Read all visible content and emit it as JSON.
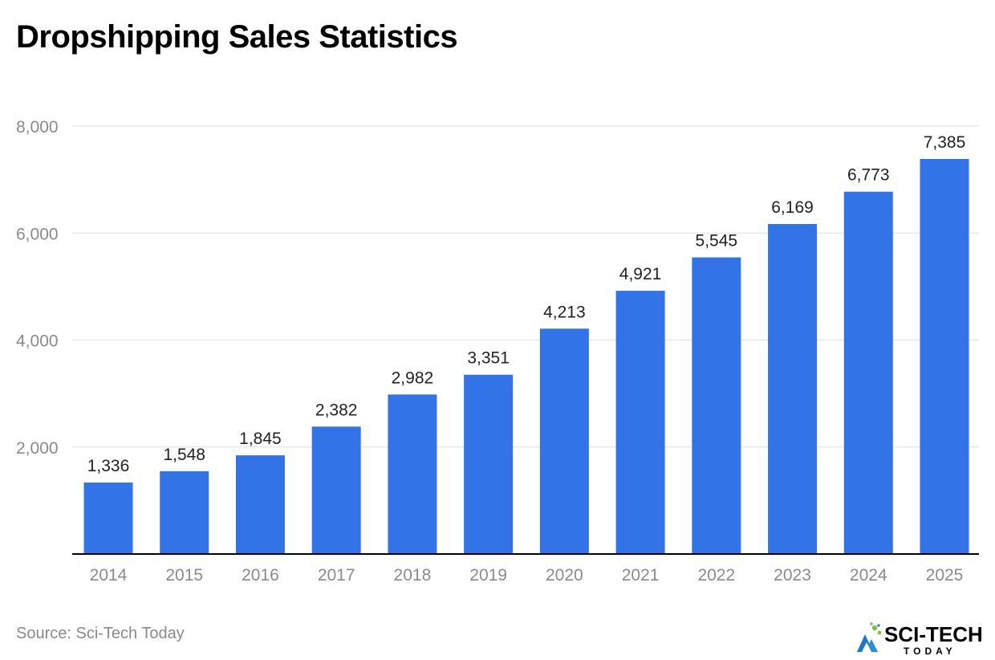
{
  "title": "Dropshipping Sales Statistics",
  "source": "Source: Sci-Tech Today",
  "logo": {
    "brand": "SCI-TECH",
    "tagline": "TODAY"
  },
  "colors": {
    "bar": "#3373E8",
    "axis_text": "#8a8a8a",
    "gridline": "#e0e0e0",
    "baseline": "#000000",
    "data_label": "#222222",
    "logo_text": "#000000",
    "logo_green": "#7CC04B",
    "logo_blue": "#1E74C7"
  },
  "chart_data": {
    "type": "bar",
    "title": "Dropshipping Sales Statistics",
    "xlabel": "",
    "ylabel": "",
    "categories": [
      "2014",
      "2015",
      "2016",
      "2017",
      "2018",
      "2019",
      "2020",
      "2021",
      "2022",
      "2023",
      "2024",
      "2025"
    ],
    "values": [
      1336,
      1548,
      1845,
      2382,
      2982,
      3351,
      4213,
      4921,
      5545,
      6169,
      6773,
      7385
    ],
    "value_labels": [
      "1,336",
      "1,548",
      "1,845",
      "2,382",
      "2,982",
      "3,351",
      "4,213",
      "4,921",
      "5,545",
      "6,169",
      "6,773",
      "7,385"
    ],
    "ylim": [
      0,
      8000
    ],
    "yticks": [
      2000,
      4000,
      6000,
      8000
    ],
    "ytick_labels": [
      "2,000",
      "4,000",
      "6,000",
      "8,000"
    ],
    "grid": true,
    "legend": "none"
  }
}
